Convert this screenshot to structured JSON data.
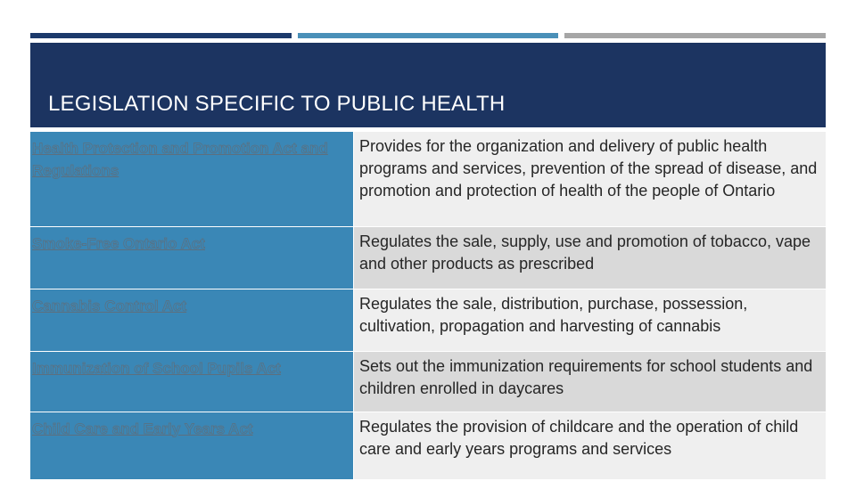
{
  "slide": {
    "title": "LEGISLATION SPECIFIC TO PUBLIC HEALTH",
    "accent_colors": [
      "#1c3a6b",
      "#4a90b8",
      "#a6a6a6"
    ],
    "header_color": "#1c3461"
  },
  "rows": [
    {
      "act": "Health Protection and Promotion Act and Regulations",
      "description": "Provides for the organization and delivery of public health programs and services, prevention of the spread of disease, and promotion and protection of health of the people of Ontario"
    },
    {
      "act": "Smoke-Free Ontario Act",
      "description": "Regulates the sale, supply, use and promotion of tobacco, vape and other products as prescribed"
    },
    {
      "act": "Cannabis Control Act",
      "description": "Regulates the sale, distribution, purchase, possession, cultivation, propagation and harvesting of cannabis"
    },
    {
      "act": "Immunization of School Pupils Act",
      "description": "Sets out the immunization requirements for school students and children enrolled in daycares"
    },
    {
      "act": "Child Care and Early Years Act",
      "description": "Regulates the provision of childcare and the operation of child care and early years programs and services"
    }
  ]
}
